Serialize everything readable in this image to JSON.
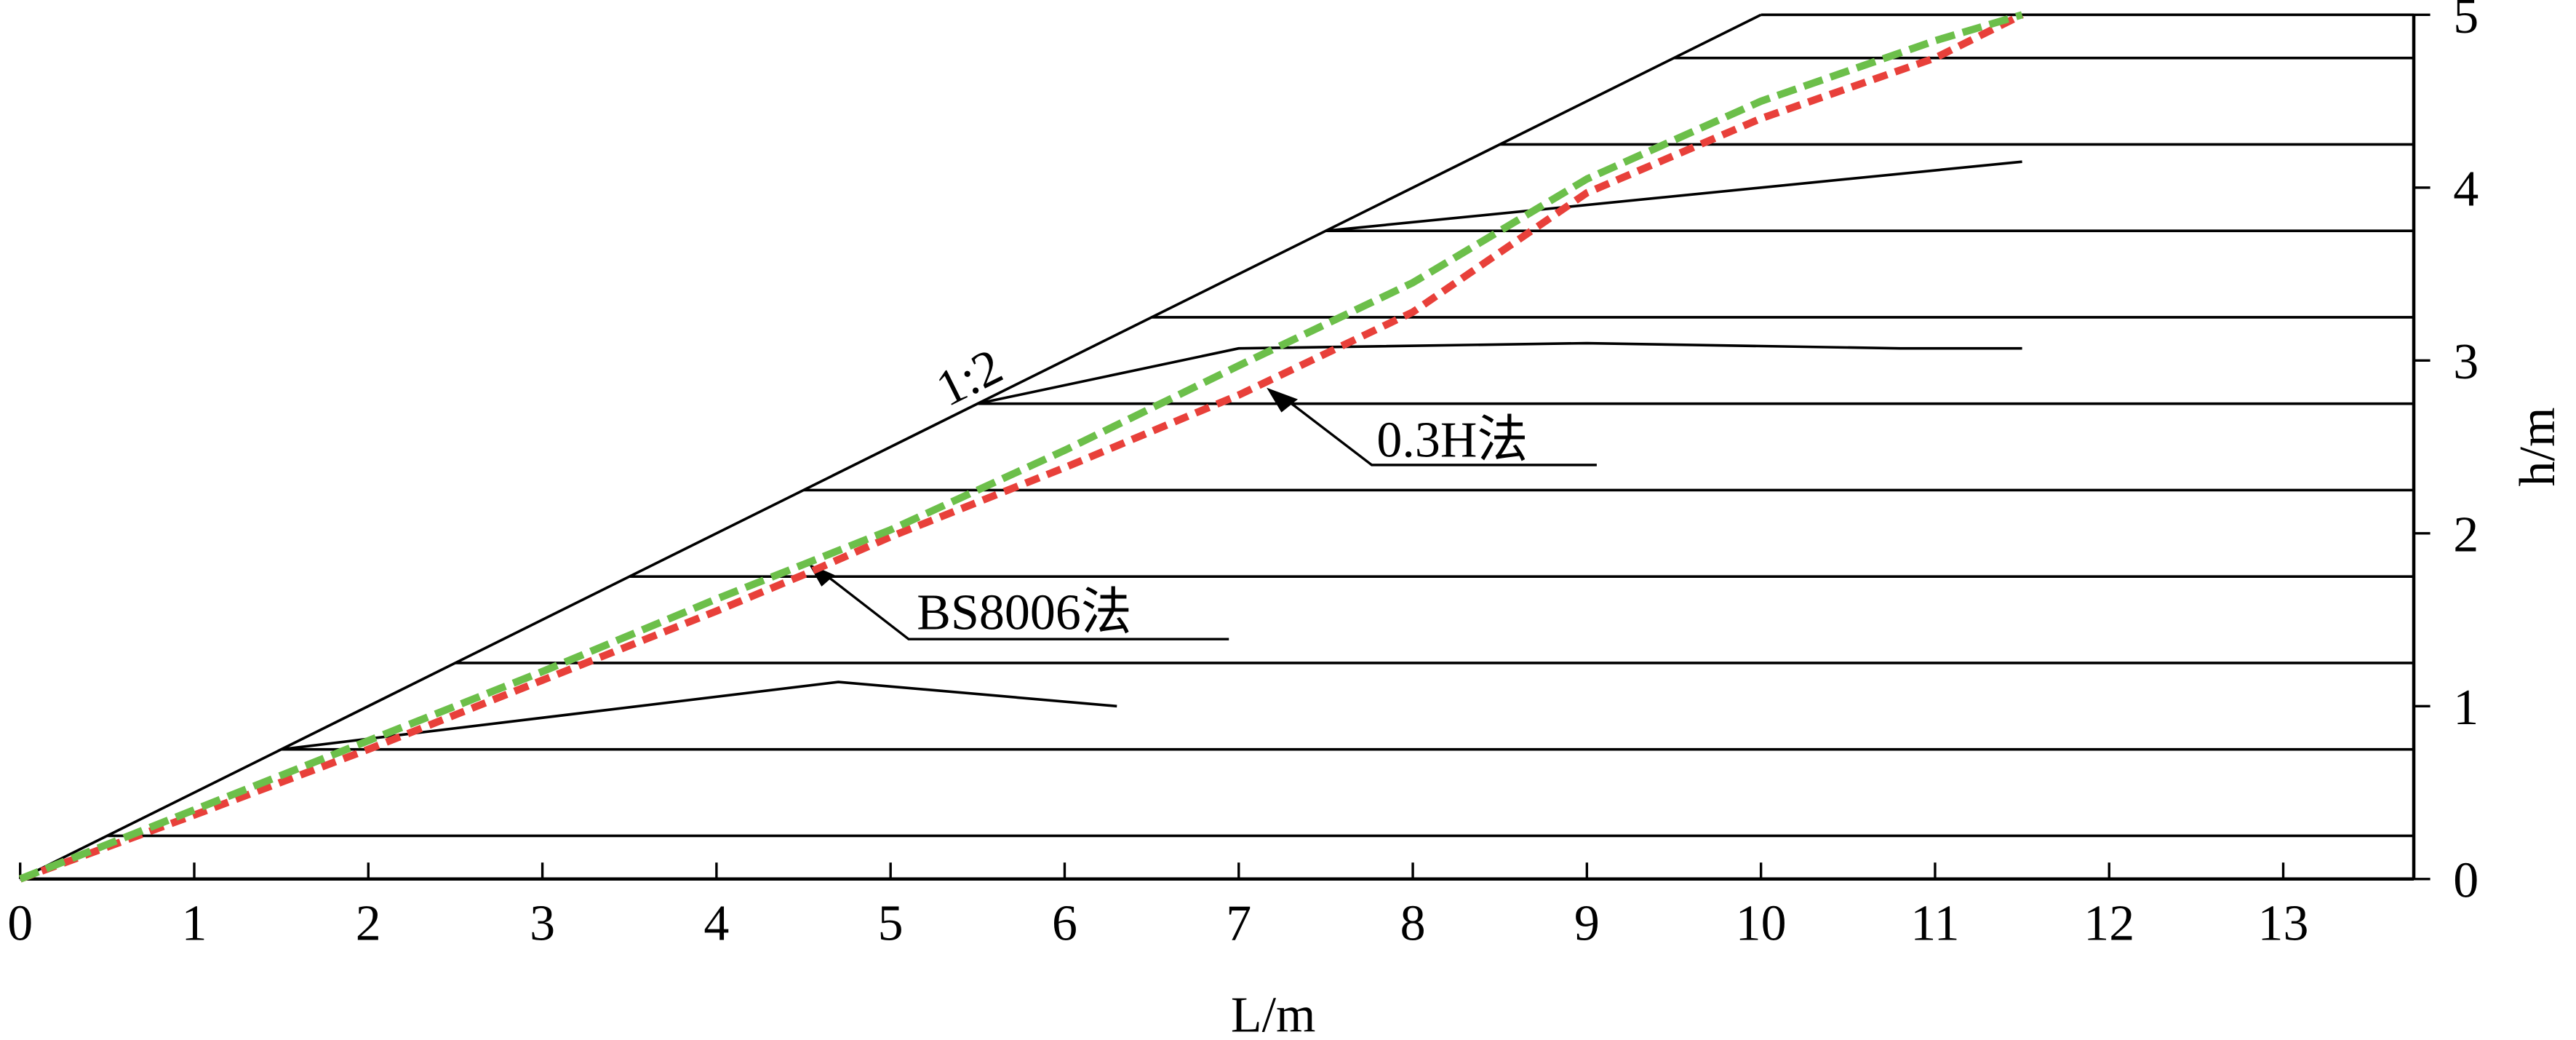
{
  "chart_data": {
    "type": "line",
    "x_label": "L/m",
    "y_label": "h/m",
    "xlim": [
      0,
      13.75
    ],
    "ylim": [
      0,
      5
    ],
    "xticks": [
      0,
      1,
      2,
      3,
      4,
      5,
      6,
      7,
      8,
      9,
      10,
      11,
      12,
      13
    ],
    "yticks": [
      0,
      1,
      2,
      3,
      4,
      5
    ],
    "annotations": [
      "1:2",
      "0.3H法",
      "BS8006法"
    ],
    "series": [
      {
        "color": "#000000",
        "dashed": false,
        "x": [
          0,
          10
        ],
        "values": [
          0,
          5
        ]
      },
      {
        "color": "#000000",
        "dashed": false,
        "x": [
          0.5,
          13.75
        ],
        "values": [
          0.25,
          0.25
        ]
      },
      {
        "color": "#000000",
        "dashed": false,
        "x": [
          1.5,
          13.75
        ],
        "values": [
          0.75,
          0.75
        ]
      },
      {
        "color": "#000000",
        "dashed": false,
        "x": [
          2.5,
          13.75
        ],
        "values": [
          1.25,
          1.25
        ]
      },
      {
        "color": "#000000",
        "dashed": false,
        "x": [
          3.5,
          13.75
        ],
        "values": [
          1.75,
          1.75
        ]
      },
      {
        "color": "#000000",
        "dashed": false,
        "x": [
          4.5,
          13.75
        ],
        "values": [
          2.25,
          2.25
        ]
      },
      {
        "color": "#000000",
        "dashed": false,
        "x": [
          5.5,
          13.75
        ],
        "values": [
          2.75,
          2.75
        ]
      },
      {
        "color": "#000000",
        "dashed": false,
        "x": [
          6.5,
          13.75
        ],
        "values": [
          3.25,
          3.25
        ]
      },
      {
        "color": "#000000",
        "dashed": false,
        "x": [
          7.5,
          13.75
        ],
        "values": [
          3.75,
          3.75
        ]
      },
      {
        "color": "#000000",
        "dashed": false,
        "x": [
          8.5,
          13.75
        ],
        "values": [
          4.25,
          4.25
        ]
      },
      {
        "color": "#000000",
        "dashed": false,
        "x": [
          9.5,
          13.75
        ],
        "values": [
          4.75,
          4.75
        ]
      },
      {
        "color": "#000000",
        "dashed": false,
        "x": [
          10,
          13.75
        ],
        "values": [
          5,
          5
        ]
      },
      {
        "color": "#000000",
        "dashed": false,
        "x": [
          1.5,
          4.7,
          6.3
        ],
        "values": [
          0.75,
          1.14,
          1.0
        ]
      },
      {
        "color": "#000000",
        "dashed": false,
        "x": [
          5.5,
          7,
          9,
          10.8,
          11.5
        ],
        "values": [
          2.75,
          3.07,
          3.1,
          3.07,
          3.07
        ]
      },
      {
        "color": "#000000",
        "dashed": false,
        "x": [
          7.5,
          11.5
        ],
        "values": [
          3.75,
          4.15
        ]
      },
      {
        "color": "#e8403a",
        "dashed": true,
        "x": [
          0,
          1,
          2,
          3,
          4,
          4.5,
          5,
          6,
          7,
          8,
          9,
          10,
          11,
          11.5
        ],
        "values": [
          0,
          0.37,
          0.75,
          1.15,
          1.55,
          1.76,
          1.98,
          2.38,
          2.8,
          3.28,
          3.97,
          4.4,
          4.75,
          5
        ]
      },
      {
        "color": "#6cbf4a",
        "dashed": true,
        "x": [
          0,
          1,
          2,
          3,
          4,
          4.5,
          5,
          6,
          7,
          8,
          9,
          10,
          11,
          11.5
        ],
        "values": [
          0,
          0.4,
          0.8,
          1.2,
          1.62,
          1.82,
          2.02,
          2.48,
          2.97,
          3.45,
          4.05,
          4.5,
          4.85,
          5
        ]
      }
    ]
  }
}
